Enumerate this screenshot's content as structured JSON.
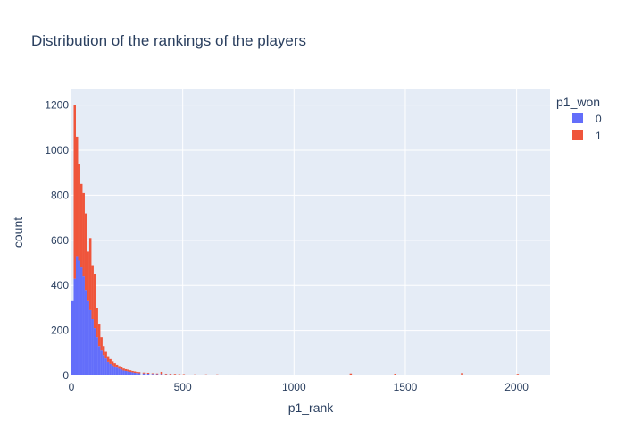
{
  "chart_data": {
    "type": "bar",
    "title": "Distribution of the rankings of the players",
    "xlabel": "p1_rank",
    "ylabel": "count",
    "xlim": [
      0,
      2150
    ],
    "ylim": [
      0,
      1270
    ],
    "xticks": [
      0,
      500,
      1000,
      1500,
      2000
    ],
    "xtick_labels": [
      "0",
      "500",
      "1000",
      "1500",
      "2000"
    ],
    "yticks": [
      0,
      200,
      400,
      600,
      800,
      1000,
      1200
    ],
    "ytick_labels": [
      "0",
      "200",
      "400",
      "600",
      "800",
      "1000",
      "1200"
    ],
    "legend": {
      "title": "p1_won",
      "placement": "top-right",
      "entries": [
        {
          "label": "0",
          "color": "#636efa"
        },
        {
          "label": "1",
          "color": "#ef553b"
        }
      ]
    },
    "barmode": "stack",
    "bin_width": 10,
    "x": [
      0,
      10,
      20,
      30,
      40,
      50,
      60,
      70,
      80,
      90,
      100,
      110,
      120,
      130,
      140,
      150,
      160,
      170,
      180,
      190,
      200,
      210,
      220,
      230,
      240,
      250,
      260,
      270,
      280,
      290,
      300,
      320,
      340,
      360,
      380,
      400,
      420,
      440,
      460,
      480,
      500,
      550,
      600,
      650,
      700,
      750,
      800,
      900,
      1000,
      1100,
      1200,
      1250,
      1300,
      1400,
      1450,
      1500,
      1600,
      1750,
      2000
    ],
    "series": [
      {
        "name": "0",
        "color": "#636efa",
        "values": [
          330,
          430,
          530,
          510,
          480,
          440,
          380,
          330,
          290,
          250,
          210,
          170,
          130,
          110,
          90,
          75,
          60,
          52,
          45,
          40,
          35,
          30,
          26,
          22,
          20,
          18,
          16,
          14,
          12,
          11,
          10,
          9,
          8,
          7,
          6,
          6,
          5,
          5,
          4,
          4,
          4,
          3,
          3,
          3,
          3,
          2,
          2,
          2,
          1,
          1,
          1,
          1,
          1,
          1,
          1,
          1,
          1,
          1,
          1
        ]
      },
      {
        "name": "1",
        "color": "#ef553b",
        "values": [
          0,
          770,
          530,
          430,
          370,
          370,
          340,
          220,
          320,
          240,
          240,
          130,
          100,
          60,
          40,
          30,
          25,
          20,
          17,
          15,
          13,
          12,
          10,
          9,
          8,
          8,
          7,
          6,
          6,
          5,
          5,
          4,
          4,
          3,
          3,
          10,
          3,
          3,
          3,
          2,
          2,
          2,
          2,
          2,
          1,
          2,
          1,
          1,
          1,
          1,
          1,
          8,
          1,
          1,
          7,
          2,
          1,
          10,
          6
        ]
      }
    ]
  }
}
